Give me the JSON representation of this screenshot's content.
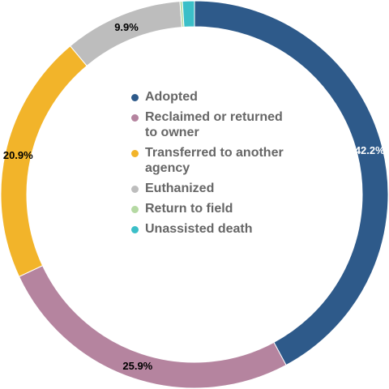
{
  "chart_data": {
    "type": "pie",
    "variant": "donut",
    "title": "",
    "legend_position": "center",
    "categories": [
      "Adopted",
      "Reclaimed or returned to owner",
      "Transferred to another agency",
      "Euthanized",
      "Return to field",
      "Unassisted death"
    ],
    "values": [
      42.2,
      25.9,
      20.9,
      9.9,
      0.2,
      1.0
    ],
    "data_labels": [
      "42.2%",
      "25.9%",
      "20.9%",
      "9.9%",
      "",
      ""
    ],
    "colors": [
      "#2e5a8a",
      "#b5849f",
      "#f2b42a",
      "#bdbdbd",
      "#b5d9a3",
      "#3bbfc8"
    ],
    "label_colors": [
      "#ffffff",
      "#000000",
      "#000000",
      "#000000",
      "#000000",
      "#000000"
    ]
  }
}
